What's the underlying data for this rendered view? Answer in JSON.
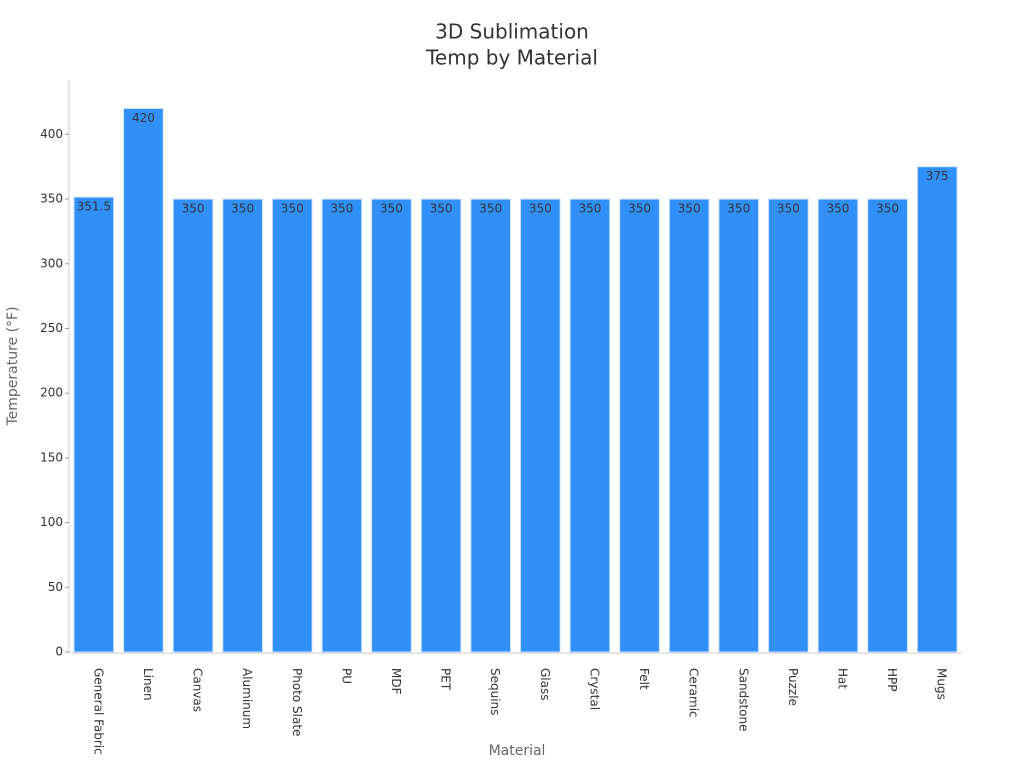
{
  "chart_data": {
    "type": "bar",
    "title": [
      "3D Sublimation",
      "Temp by Material"
    ],
    "x_label": "Material",
    "y_label": "Temperature (°F)",
    "categories": [
      "General Fabric",
      "Linen",
      "Canvas",
      "Aluminum",
      "Photo Slate",
      "PU",
      "MDF",
      "PET",
      "Sequins",
      "Glass",
      "Crystal",
      "Felt",
      "Ceramic",
      "Sandstone",
      "Puzzle",
      "Hat",
      "HPP",
      "Mugs"
    ],
    "values": [
      351.5,
      420,
      350,
      350,
      350,
      350,
      350,
      350,
      350,
      350,
      350,
      350,
      350,
      350,
      350,
      350,
      350,
      375
    ],
    "color": "#3090f8",
    "ylim": [
      0,
      442
    ],
    "yticks": [
      0,
      50,
      100,
      150,
      200,
      250,
      300,
      350,
      400
    ],
    "grid": false
  }
}
